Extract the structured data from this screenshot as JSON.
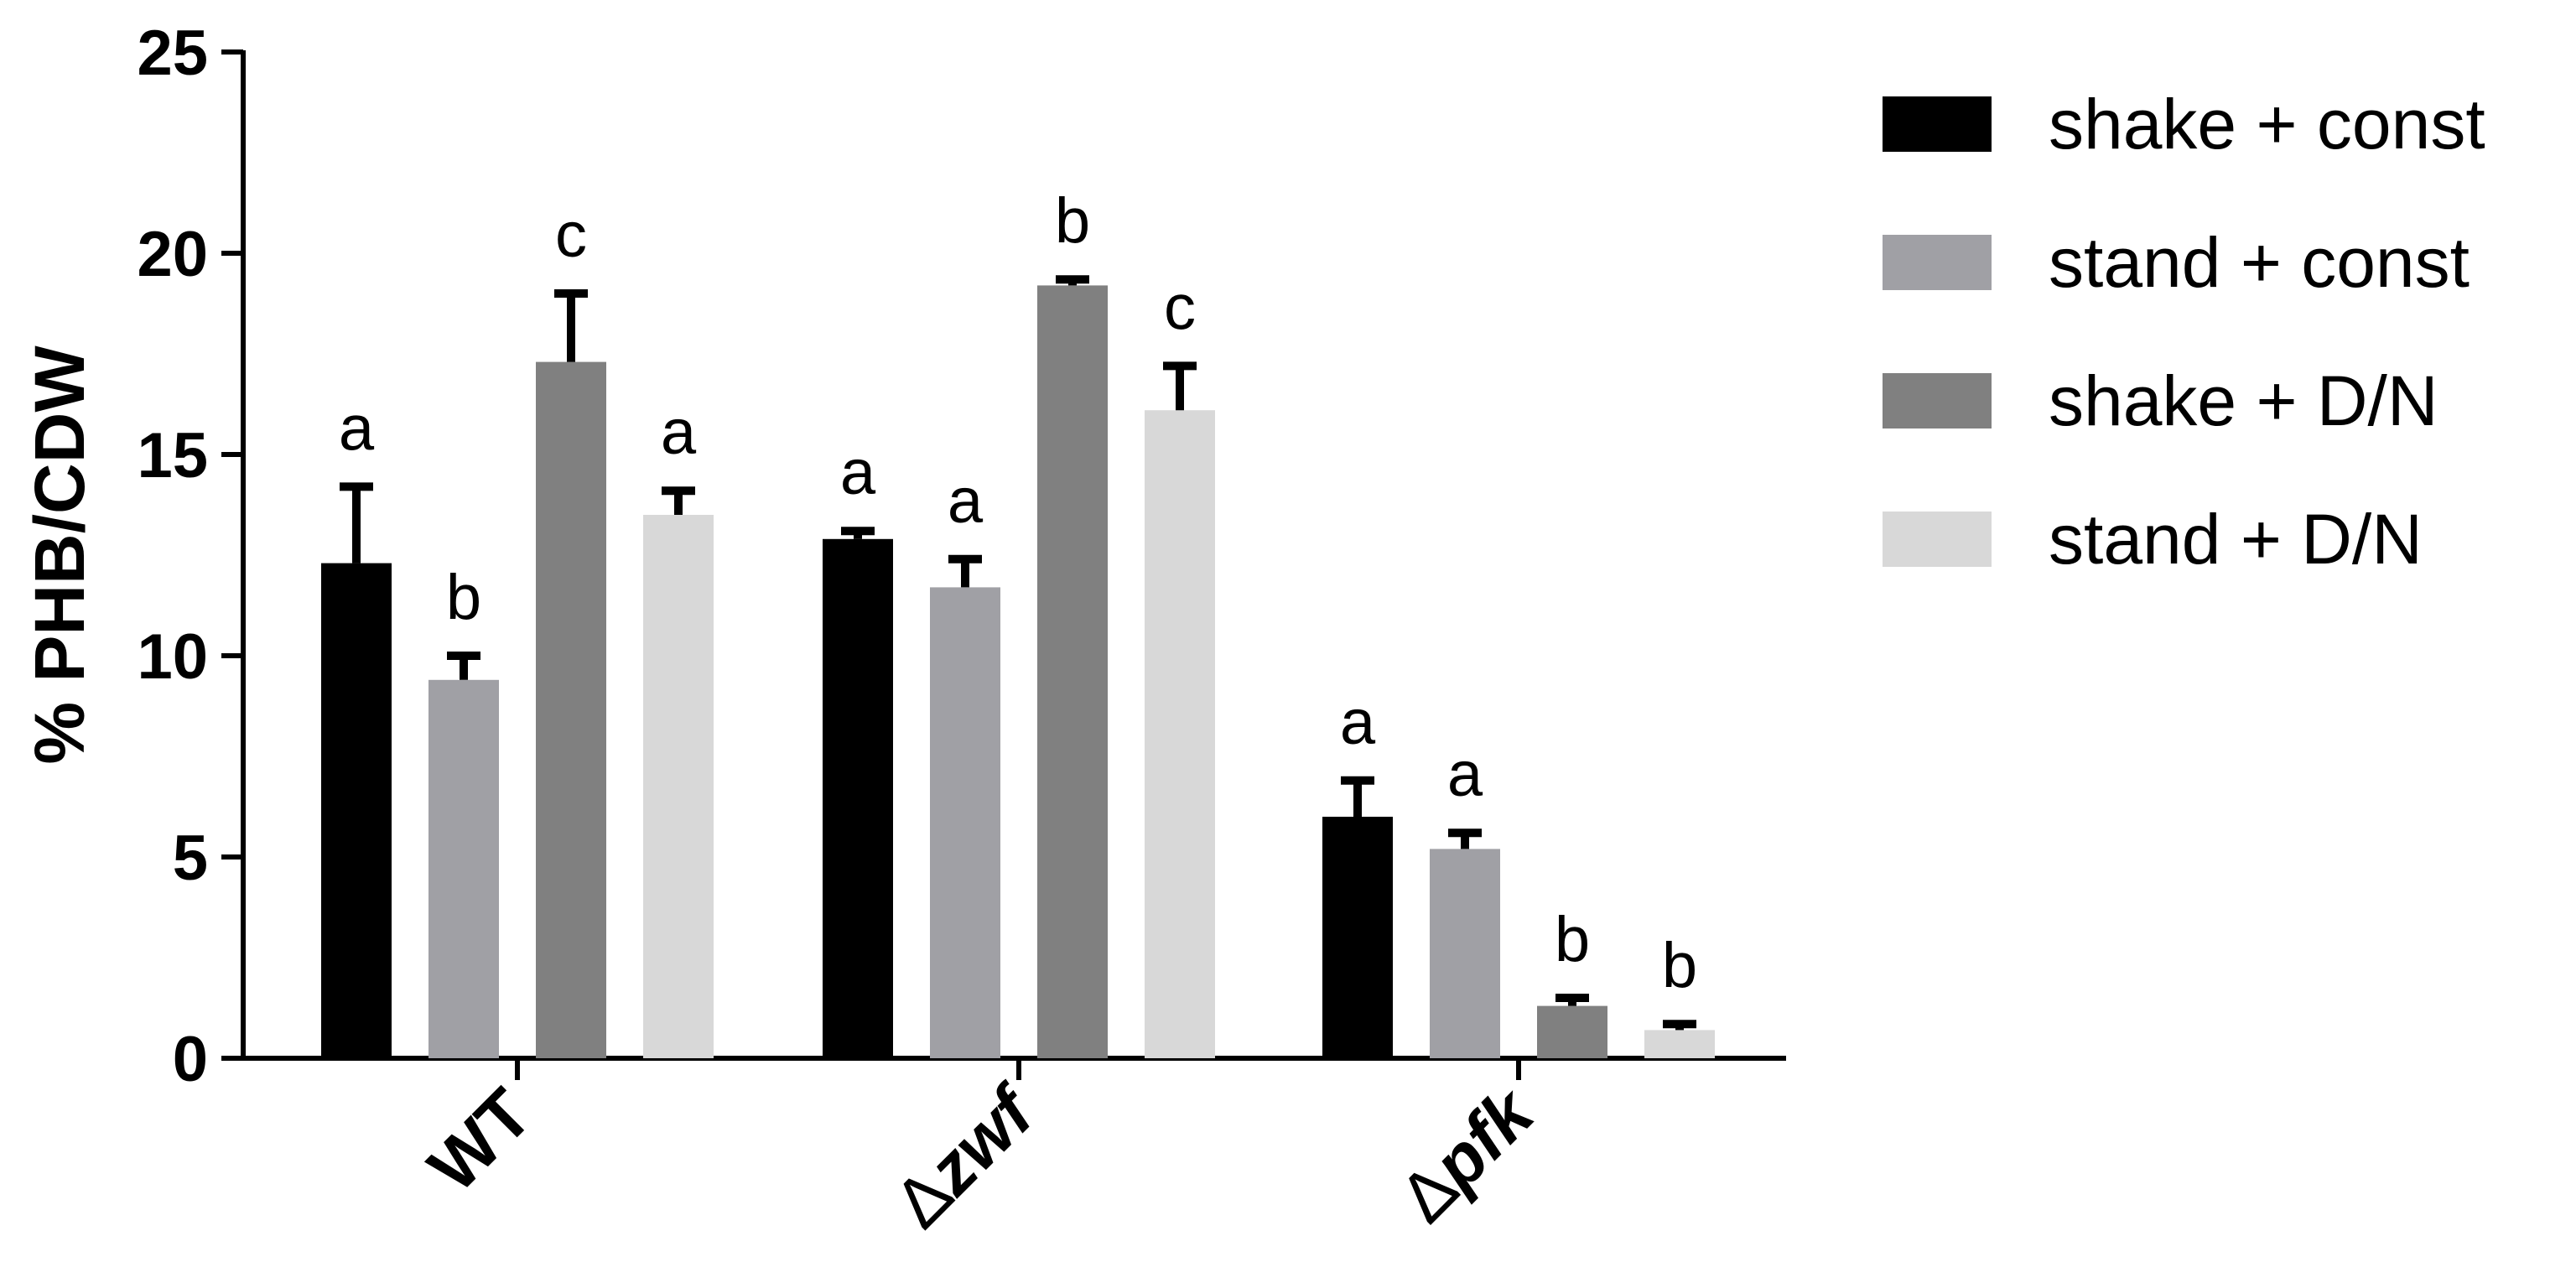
{
  "chart_data": {
    "type": "bar",
    "title": "",
    "xlabel": "",
    "ylabel": "% PHB/CDW",
    "ylim": [
      0,
      25
    ],
    "yticks": [
      0,
      5,
      10,
      15,
      20,
      25
    ],
    "grid": false,
    "legend_position": "right",
    "categories": [
      {
        "prefix": "",
        "name": "WT"
      },
      {
        "prefix": "Δ",
        "name": "zwf"
      },
      {
        "prefix": "Δ",
        "name": "pfk"
      }
    ],
    "series": [
      {
        "name": "shake + const",
        "color": "#000000",
        "values": [
          12.3,
          12.9,
          6.0
        ],
        "errors": [
          1.9,
          0.2,
          0.9
        ],
        "labels": [
          "a",
          "a",
          "a"
        ]
      },
      {
        "name": "stand + const",
        "color": "#a0a0a5",
        "values": [
          9.4,
          11.7,
          5.2
        ],
        "errors": [
          0.6,
          0.7,
          0.4
        ],
        "labels": [
          "b",
          "a",
          "a"
        ]
      },
      {
        "name": "shake + D/N",
        "color": "#808080",
        "values": [
          17.3,
          19.2,
          1.3
        ],
        "errors": [
          1.7,
          0.15,
          0.2
        ],
        "labels": [
          "c",
          "b",
          "b"
        ]
      },
      {
        "name": "stand + D/N",
        "color": "#d8d8d8",
        "values": [
          13.5,
          16.1,
          0.7
        ],
        "errors": [
          0.6,
          1.1,
          0.15
        ],
        "labels": [
          "a",
          "c",
          "b"
        ]
      }
    ]
  }
}
